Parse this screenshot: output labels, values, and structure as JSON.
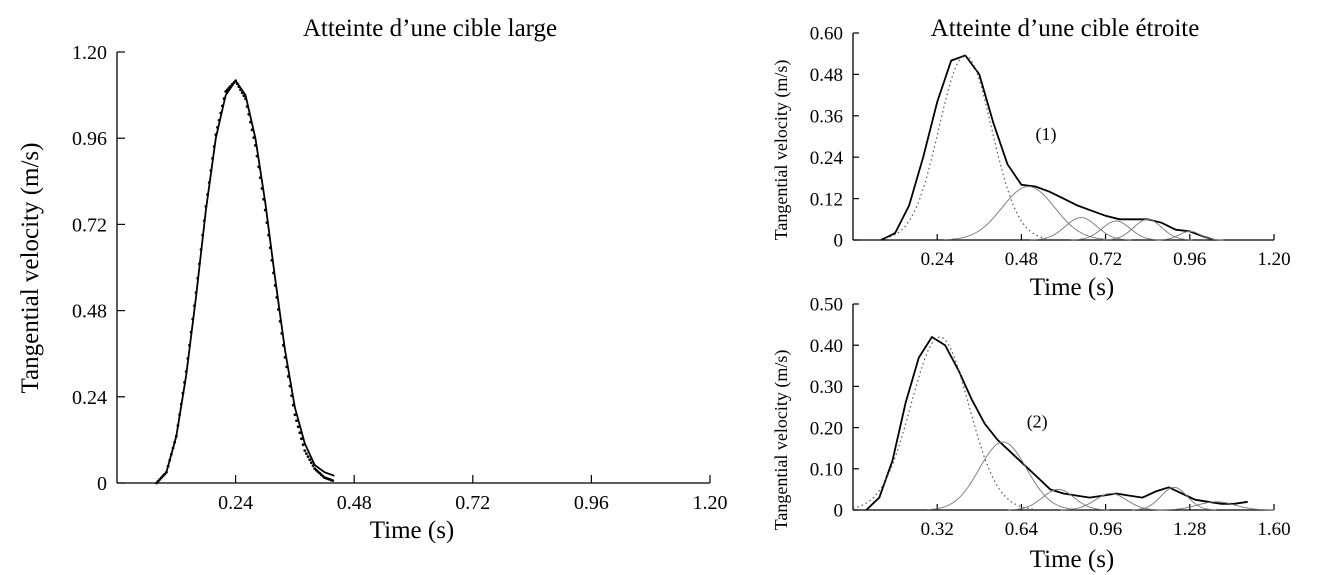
{
  "chart_data": [
    {
      "id": "large",
      "type": "line",
      "title": "Atteinte d’une cible large",
      "xlabel": "Time (s)",
      "ylabel": "Tangential velocity (m/s)",
      "xlim": [
        0,
        1.2
      ],
      "ylim": [
        0,
        1.2
      ],
      "xticks": [
        "0.24",
        "0.48",
        "0.72",
        "0.96",
        "1.20"
      ],
      "yticks": [
        "0",
        "0.24",
        "0.48",
        "0.72",
        "0.96",
        "1.20"
      ],
      "xtick_values": [
        0.24,
        0.48,
        0.72,
        0.96,
        1.2
      ],
      "ytick_values": [
        0,
        0.24,
        0.48,
        0.72,
        0.96,
        1.2
      ],
      "annotation": "",
      "series": [
        {
          "style": "solid",
          "color": "#000000",
          "x": [
            0.08,
            0.1,
            0.12,
            0.14,
            0.16,
            0.18,
            0.2,
            0.22,
            0.24,
            0.26,
            0.28,
            0.3,
            0.32,
            0.34,
            0.36,
            0.38,
            0.4,
            0.42,
            0.44
          ],
          "y": [
            0,
            0.03,
            0.13,
            0.3,
            0.52,
            0.76,
            0.96,
            1.08,
            1.12,
            1.08,
            0.96,
            0.78,
            0.57,
            0.37,
            0.21,
            0.11,
            0.05,
            0.03,
            0.02
          ]
        },
        {
          "style": "dotted",
          "color": "#000000",
          "x": [
            0.08,
            0.1,
            0.12,
            0.14,
            0.16,
            0.18,
            0.2,
            0.22,
            0.24,
            0.26,
            0.28,
            0.3,
            0.32,
            0.34,
            0.36,
            0.38,
            0.4,
            0.42,
            0.44
          ],
          "y": [
            0,
            0.03,
            0.13,
            0.31,
            0.53,
            0.77,
            0.97,
            1.09,
            1.12,
            1.07,
            0.94,
            0.76,
            0.55,
            0.35,
            0.19,
            0.09,
            0.04,
            0.015,
            0.005
          ]
        }
      ]
    },
    {
      "id": "narrow1",
      "type": "line",
      "title": "Atteinte d’une cible étroite",
      "xlabel": "Time (s)",
      "ylabel": "Tangential velocity (m/s)",
      "xlim": [
        0,
        1.2
      ],
      "ylim": [
        0,
        0.6
      ],
      "xticks": [
        "0.24",
        "0.48",
        "0.72",
        "0.96",
        "1.20"
      ],
      "yticks": [
        "0",
        "0.12",
        "0.24",
        "0.36",
        "0.48",
        "0.60"
      ],
      "xtick_values": [
        0.24,
        0.48,
        0.72,
        0.96,
        1.2
      ],
      "ytick_values": [
        0,
        0.12,
        0.24,
        0.36,
        0.48,
        0.6
      ],
      "annotation": "(1)",
      "annotation_at": [
        0.55,
        0.29
      ],
      "series": [
        {
          "style": "solid",
          "color": "#000000",
          "x": [
            0.08,
            0.12,
            0.16,
            0.2,
            0.24,
            0.28,
            0.32,
            0.36,
            0.4,
            0.44,
            0.48,
            0.52,
            0.56,
            0.6,
            0.64,
            0.68,
            0.72,
            0.76,
            0.8,
            0.84,
            0.88,
            0.92,
            0.96,
            1.0,
            1.03
          ],
          "y": [
            0,
            0.02,
            0.1,
            0.24,
            0.4,
            0.52,
            0.535,
            0.48,
            0.34,
            0.22,
            0.16,
            0.155,
            0.14,
            0.12,
            0.1,
            0.085,
            0.07,
            0.06,
            0.06,
            0.06,
            0.05,
            0.03,
            0.025,
            0.01,
            0
          ]
        },
        {
          "style": "dotted",
          "color": "#555555",
          "peak": 0.32,
          "amp": 0.535,
          "sd": 0.075
        },
        {
          "style": "thin",
          "color": "#777777",
          "peak": 0.5,
          "amp": 0.155,
          "sd": 0.075
        },
        {
          "style": "thin",
          "color": "#777777",
          "peak": 0.65,
          "amp": 0.065,
          "sd": 0.045
        },
        {
          "style": "thin",
          "color": "#777777",
          "peak": 0.75,
          "amp": 0.055,
          "sd": 0.04
        },
        {
          "style": "thin",
          "color": "#777777",
          "peak": 0.84,
          "amp": 0.06,
          "sd": 0.04
        },
        {
          "style": "thin",
          "color": "#777777",
          "peak": 0.96,
          "amp": 0.025,
          "sd": 0.03
        }
      ]
    },
    {
      "id": "narrow2",
      "type": "line",
      "title": "",
      "xlabel": "Time (s)",
      "ylabel": "Tangential velocity (m/s)",
      "xlim": [
        0,
        1.6
      ],
      "ylim": [
        0,
        0.5
      ],
      "xticks": [
        "0.32",
        "0.64",
        "0.96",
        "1.28",
        "1.60"
      ],
      "yticks": [
        "0",
        "0.10",
        "0.20",
        "0.30",
        "0.40",
        "0.50"
      ],
      "xtick_values": [
        0.32,
        0.64,
        0.96,
        1.28,
        1.6
      ],
      "ytick_values": [
        0,
        0.1,
        0.2,
        0.3,
        0.4,
        0.5
      ],
      "annotation": "(2)",
      "annotation_at": [
        0.7,
        0.2
      ],
      "series": [
        {
          "style": "solid",
          "color": "#000000",
          "x": [
            0.05,
            0.1,
            0.15,
            0.2,
            0.25,
            0.3,
            0.35,
            0.4,
            0.45,
            0.5,
            0.55,
            0.6,
            0.65,
            0.7,
            0.75,
            0.8,
            0.85,
            0.9,
            0.95,
            1.0,
            1.05,
            1.1,
            1.15,
            1.2,
            1.25,
            1.3,
            1.35,
            1.4,
            1.45,
            1.5
          ],
          "y": [
            0,
            0.03,
            0.12,
            0.26,
            0.37,
            0.42,
            0.4,
            0.34,
            0.27,
            0.21,
            0.17,
            0.14,
            0.11,
            0.08,
            0.05,
            0.04,
            0.035,
            0.03,
            0.035,
            0.04,
            0.035,
            0.03,
            0.045,
            0.055,
            0.04,
            0.025,
            0.02,
            0.015,
            0.015,
            0.02
          ]
        },
        {
          "style": "dotted",
          "color": "#555555",
          "peak": 0.33,
          "amp": 0.42,
          "sd": 0.11
        },
        {
          "style": "thin",
          "color": "#777777",
          "peak": 0.57,
          "amp": 0.165,
          "sd": 0.09
        },
        {
          "style": "thin",
          "color": "#777777",
          "peak": 0.78,
          "amp": 0.05,
          "sd": 0.06
        },
        {
          "style": "thin",
          "color": "#777777",
          "peak": 0.98,
          "amp": 0.04,
          "sd": 0.06
        },
        {
          "style": "thin",
          "color": "#777777",
          "peak": 1.22,
          "amp": 0.055,
          "sd": 0.05
        },
        {
          "style": "thin",
          "color": "#777777",
          "peak": 1.38,
          "amp": 0.02,
          "sd": 0.07
        }
      ]
    }
  ]
}
